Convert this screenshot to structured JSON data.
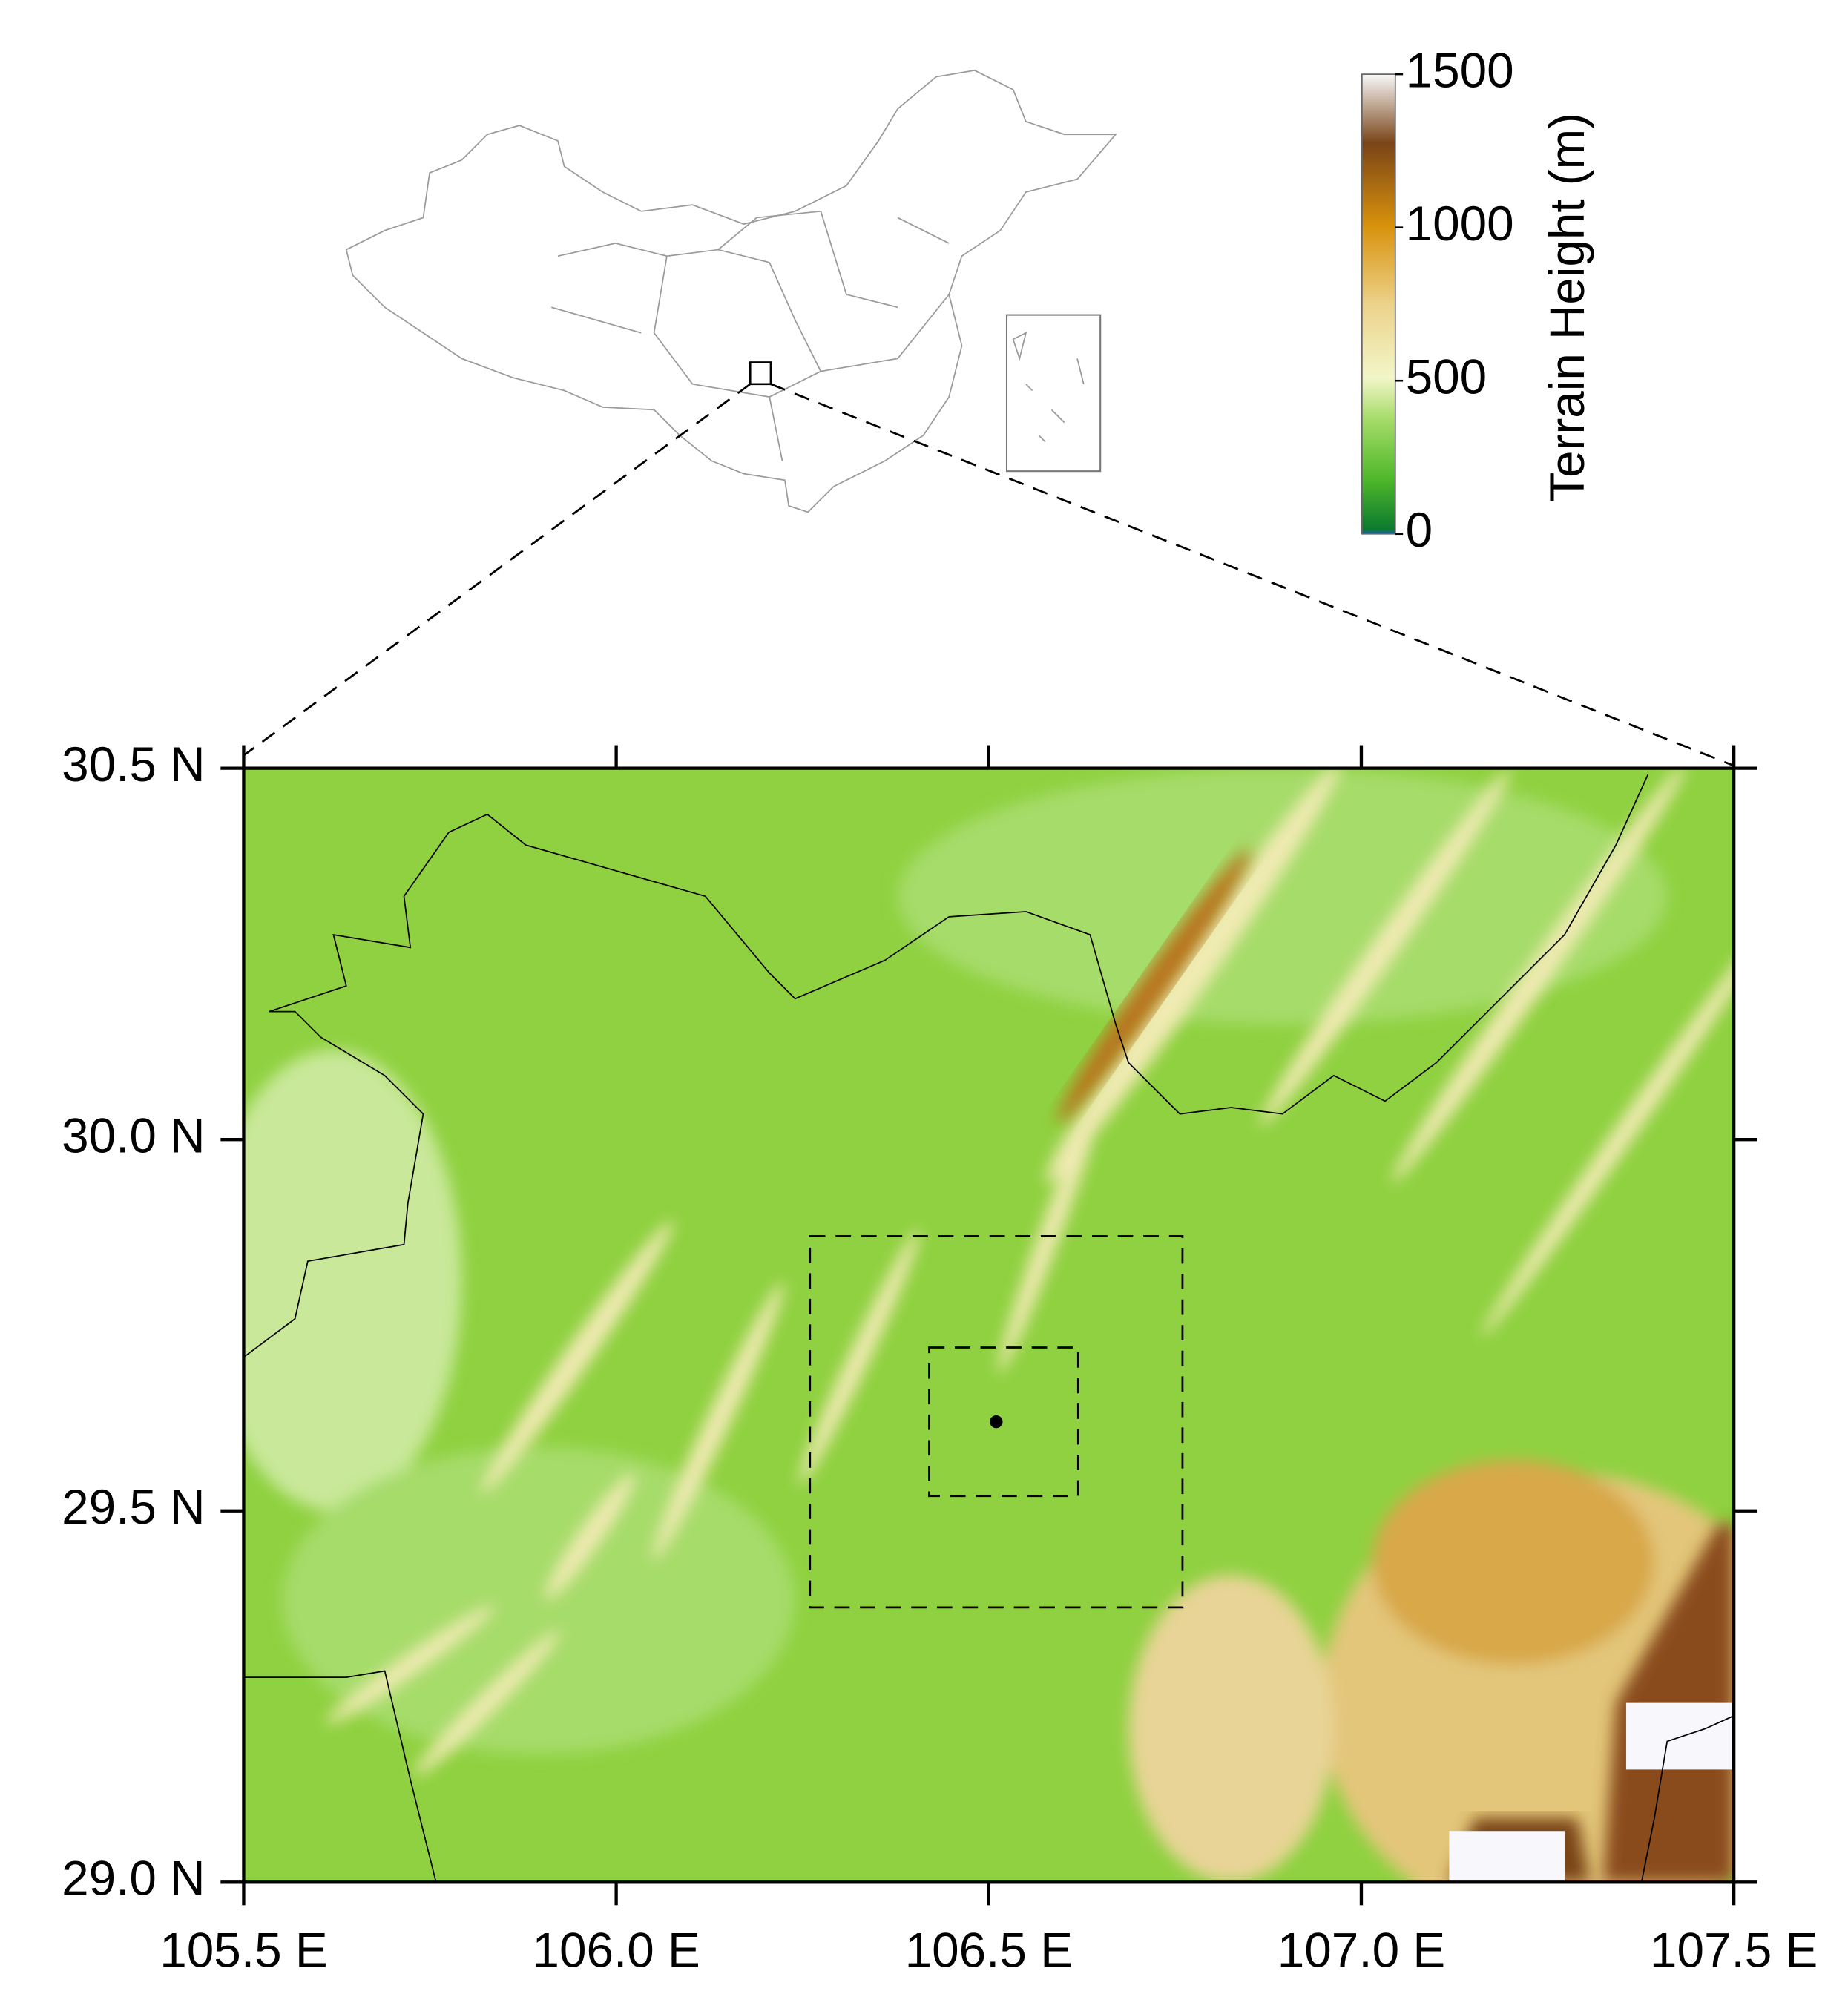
{
  "map": {
    "xlim": [
      105.5,
      107.5
    ],
    "ylim": [
      29.0,
      30.5
    ],
    "xticks": [
      {
        "value": 105.5,
        "label": "105.5 E"
      },
      {
        "value": 106.0,
        "label": "106.0 E"
      },
      {
        "value": 106.5,
        "label": "106.5 E"
      },
      {
        "value": 107.0,
        "label": "107.0 E"
      },
      {
        "value": 107.5,
        "label": "107.5 E"
      }
    ],
    "yticks": [
      {
        "value": 29.0,
        "label": "29.0 N"
      },
      {
        "value": 29.5,
        "label": "29.5 N"
      },
      {
        "value": 30.0,
        "label": "30.0 N"
      },
      {
        "value": 30.5,
        "label": "30.5 N"
      }
    ],
    "domains": [
      {
        "lon": [
          106.26,
          106.76
        ],
        "lat": [
          29.37,
          29.87
        ]
      },
      {
        "lon": [
          106.42,
          106.62
        ],
        "lat": [
          29.52,
          29.72
        ]
      }
    ],
    "site": {
      "lon": 106.51,
      "lat": 29.62
    }
  },
  "colorbar": {
    "label": "Terrain Height (m)",
    "range": [
      0,
      1500
    ],
    "ticks": [
      0,
      500,
      1000,
      1500
    ]
  }
}
